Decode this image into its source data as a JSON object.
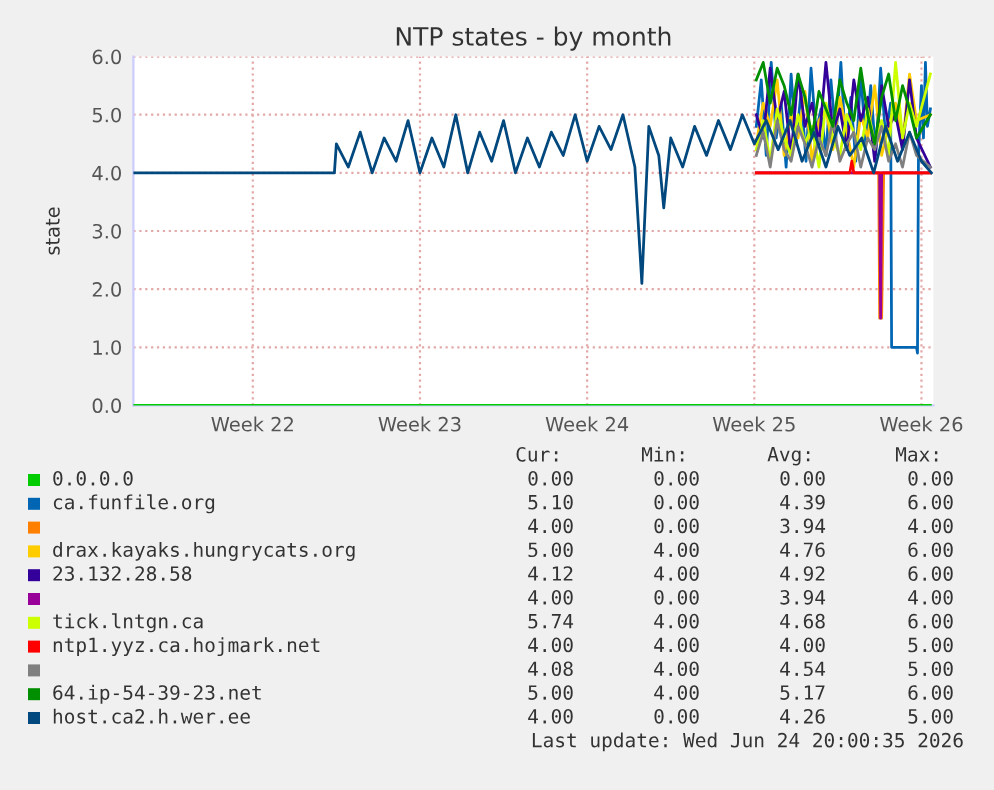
{
  "chart_data": {
    "type": "line",
    "title": "NTP states - by month",
    "ylabel": "state",
    "xlim": [
      "2026-05-20T00:00",
      "2026-06-22T12:00"
    ],
    "xticks": [
      {
        "value": "2026-05-25",
        "label": "Week 22"
      },
      {
        "value": "2026-06-01",
        "label": "Week 23"
      },
      {
        "value": "2026-06-08",
        "label": "Week 24"
      },
      {
        "value": "2026-06-15",
        "label": "Week 25"
      },
      {
        "value": "2026-06-22",
        "label": "Week 26"
      }
    ],
    "ylim": [
      0,
      6
    ],
    "yticks": [
      {
        "value": 0,
        "label": "0.0"
      },
      {
        "value": 1,
        "label": "1.0"
      },
      {
        "value": 2,
        "label": "2.0"
      },
      {
        "value": 3,
        "label": "3.0"
      },
      {
        "value": 4,
        "label": "4.0"
      },
      {
        "value": 5,
        "label": "5.0"
      },
      {
        "value": 6,
        "label": "6.0"
      }
    ],
    "grid": true,
    "legend": "bottom",
    "marker": "none",
    "line_style": "solid",
    "series": [
      {
        "name": "0.0.0.0",
        "color": "#00cc00",
        "x": [
          "2026-05-20T00:00",
          "2026-06-22T09:00"
        ],
        "values": [
          0,
          0
        ]
      },
      {
        "name": "ca.funfile.org",
        "color": "#0066b3",
        "x": [
          "2026-06-15T02:00",
          "2026-06-15T07:00",
          "2026-06-15T12:00",
          "2026-06-15T17:00",
          "2026-06-15T22:00",
          "2026-06-16T03:00",
          "2026-06-16T08:00",
          "2026-06-16T13:00",
          "2026-06-16T18:00",
          "2026-06-16T23:00",
          "2026-06-17T04:00",
          "2026-06-17T09:00",
          "2026-06-17T14:00",
          "2026-06-17T19:00",
          "2026-06-18T00:00",
          "2026-06-18T05:00",
          "2026-06-18T10:00",
          "2026-06-18T15:00",
          "2026-06-18T20:00",
          "2026-06-19T01:00",
          "2026-06-19T06:00",
          "2026-06-19T11:00",
          "2026-06-19T16:00",
          "2026-06-19T21:00",
          "2026-06-20T02:00",
          "2026-06-20T07:00",
          "2026-06-20T12:00",
          "2026-06-20T17:00",
          "2026-06-20T18:00",
          "2026-06-21T19:00",
          "2026-06-21T20:00",
          "2026-06-21T21:00",
          "2026-06-22T00:00",
          "2026-06-22T02:00",
          "2026-06-22T04:00",
          "2026-06-22T06:00",
          "2026-06-22T09:00"
        ],
        "values": [
          4.8,
          5.6,
          4.3,
          5.9,
          4.6,
          5.2,
          4.1,
          5.7,
          4.5,
          5.4,
          4.2,
          5.8,
          4.7,
          5.1,
          4.3,
          5.6,
          4.6,
          5.9,
          4.4,
          5.3,
          4.2,
          5.7,
          4.5,
          5.5,
          4.3,
          5.8,
          4.6,
          5.2,
          1.0,
          1.0,
          0.9,
          4.3,
          5.5,
          4.6,
          5.9,
          4.8,
          5.1
        ]
      },
      {
        "color": "#ff8000",
        "x": [
          "2026-06-15T02:00",
          "2026-06-20T05:00",
          "2026-06-20T06:00",
          "2026-06-20T08:00",
          "2026-06-20T10:00",
          "2026-06-22T09:00"
        ],
        "values": [
          4,
          4,
          1.5,
          1.5,
          4,
          4
        ]
      },
      {
        "name": "drax.kayaks.hungrycats.org",
        "color": "#ffcc00",
        "x": [
          "2026-06-15T02:00",
          "2026-06-15T09:00",
          "2026-06-15T16:00",
          "2026-06-15T23:00",
          "2026-06-16T06:00",
          "2026-06-16T13:00",
          "2026-06-16T20:00",
          "2026-06-17T03:00",
          "2026-06-17T10:00",
          "2026-06-17T17:00",
          "2026-06-18T00:00",
          "2026-06-18T07:00",
          "2026-06-18T14:00",
          "2026-06-18T21:00",
          "2026-06-19T04:00",
          "2026-06-19T11:00",
          "2026-06-19T18:00",
          "2026-06-20T01:00",
          "2026-06-20T08:00",
          "2026-06-20T15:00",
          "2026-06-20T22:00",
          "2026-06-21T05:00",
          "2026-06-21T12:00",
          "2026-06-21T19:00",
          "2026-06-22T09:00"
        ],
        "values": [
          4.5,
          5.2,
          4.8,
          5.6,
          4.3,
          5.0,
          4.6,
          5.4,
          4.2,
          4.9,
          5.1,
          4.4,
          5.3,
          4.7,
          4.1,
          5.0,
          4.6,
          5.5,
          4.3,
          4.8,
          5.2,
          4.5,
          5.7,
          4.9,
          5.0
        ]
      },
      {
        "name": "23.132.28.58",
        "color": "#330099",
        "x": [
          "2026-06-15T02:00",
          "2026-06-15T09:00",
          "2026-06-15T16:00",
          "2026-06-15T23:00",
          "2026-06-16T06:00",
          "2026-06-16T13:00",
          "2026-06-16T20:00",
          "2026-06-17T03:00",
          "2026-06-17T10:00",
          "2026-06-17T17:00",
          "2026-06-18T00:00",
          "2026-06-18T07:00",
          "2026-06-18T14:00",
          "2026-06-18T21:00",
          "2026-06-19T04:00",
          "2026-06-19T11:00",
          "2026-06-19T18:00",
          "2026-06-20T01:00",
          "2026-06-20T08:00",
          "2026-06-20T15:00",
          "2026-06-20T22:00",
          "2026-06-21T05:00",
          "2026-06-21T12:00",
          "2026-06-21T19:00",
          "2026-06-22T09:00"
        ],
        "values": [
          5.0,
          4.6,
          5.8,
          4.9,
          5.4,
          4.3,
          5.7,
          4.8,
          5.2,
          4.5,
          5.9,
          4.7,
          5.1,
          4.4,
          5.6,
          4.9,
          5.3,
          4.2,
          5.5,
          4.8,
          5.0,
          4.4,
          5.6,
          4.6,
          4.1
        ]
      },
      {
        "color": "#990099",
        "x": [
          "2026-06-15T02:00",
          "2026-06-20T06:00",
          "2026-06-20T07:00",
          "2026-06-20T08:00",
          "2026-06-22T09:00"
        ],
        "values": [
          4,
          4,
          1.5,
          4,
          4
        ]
      },
      {
        "name": "tick.lntgn.ca",
        "color": "#ccff00",
        "x": [
          "2026-06-15T02:00",
          "2026-06-15T09:00",
          "2026-06-15T16:00",
          "2026-06-15T23:00",
          "2026-06-16T06:00",
          "2026-06-16T13:00",
          "2026-06-16T20:00",
          "2026-06-17T03:00",
          "2026-06-17T10:00",
          "2026-06-17T17:00",
          "2026-06-18T00:00",
          "2026-06-18T07:00",
          "2026-06-18T14:00",
          "2026-06-18T21:00",
          "2026-06-19T04:00",
          "2026-06-19T11:00",
          "2026-06-19T18:00",
          "2026-06-20T01:00",
          "2026-06-20T08:00",
          "2026-06-20T15:00",
          "2026-06-20T22:00",
          "2026-06-21T05:00",
          "2026-06-21T12:00",
          "2026-06-21T19:00",
          "2026-06-22T09:00"
        ],
        "values": [
          4.4,
          4.9,
          4.2,
          5.1,
          4.6,
          4.3,
          5.0,
          4.5,
          4.8,
          4.1,
          5.2,
          4.6,
          4.3,
          5.0,
          4.7,
          4.4,
          5.1,
          4.5,
          4.9,
          4.3,
          5.9,
          4.6,
          5.2,
          4.8,
          5.7
        ]
      },
      {
        "name": "ntp1.yyz.ca.hojmark.net",
        "color": "#ff0000",
        "x": [
          "2026-06-15T02:00",
          "2026-06-19T00:00",
          "2026-06-19T02:00",
          "2026-06-19T04:00",
          "2026-06-22T09:00"
        ],
        "values": [
          4,
          4,
          4.2,
          4,
          4
        ]
      },
      {
        "color": "#808080",
        "x": [
          "2026-06-15T02:00",
          "2026-06-15T09:00",
          "2026-06-15T16:00",
          "2026-06-15T23:00",
          "2026-06-16T06:00",
          "2026-06-16T13:00",
          "2026-06-16T20:00",
          "2026-06-17T03:00",
          "2026-06-17T10:00",
          "2026-06-17T17:00",
          "2026-06-18T00:00",
          "2026-06-18T07:00",
          "2026-06-18T14:00",
          "2026-06-18T21:00",
          "2026-06-19T04:00",
          "2026-06-19T11:00",
          "2026-06-19T18:00",
          "2026-06-20T01:00",
          "2026-06-20T08:00",
          "2026-06-20T15:00",
          "2026-06-20T22:00",
          "2026-06-21T05:00",
          "2026-06-21T12:00",
          "2026-06-21T19:00",
          "2026-06-22T09:00"
        ],
        "values": [
          4.3,
          4.7,
          4.1,
          4.9,
          4.4,
          4.2,
          4.8,
          4.5,
          4.1,
          4.6,
          4.3,
          4.9,
          4.2,
          4.5,
          4.7,
          4.1,
          4.6,
          4.4,
          4.8,
          4.2,
          4.5,
          4.1,
          4.7,
          4.3,
          4.1
        ]
      },
      {
        "name": "64.ip-54-39-23.net",
        "color": "#008f00",
        "x": [
          "2026-06-15T02:00",
          "2026-06-15T09:00",
          "2026-06-15T16:00",
          "2026-06-15T23:00",
          "2026-06-16T06:00",
          "2026-06-16T13:00",
          "2026-06-16T20:00",
          "2026-06-17T03:00",
          "2026-06-17T10:00",
          "2026-06-17T17:00",
          "2026-06-18T00:00",
          "2026-06-18T07:00",
          "2026-06-18T14:00",
          "2026-06-18T21:00",
          "2026-06-19T04:00",
          "2026-06-19T11:00",
          "2026-06-19T18:00",
          "2026-06-20T01:00",
          "2026-06-20T08:00",
          "2026-06-20T15:00",
          "2026-06-20T22:00",
          "2026-06-21T05:00",
          "2026-06-21T12:00",
          "2026-06-21T19:00",
          "2026-06-22T09:00"
        ],
        "values": [
          5.6,
          5.9,
          5.2,
          5.8,
          5.5,
          5.0,
          5.7,
          5.3,
          4.6,
          5.4,
          5.1,
          4.8,
          5.6,
          5.2,
          4.9,
          5.8,
          5.0,
          4.5,
          5.3,
          5.7,
          4.9,
          5.5,
          5.1,
          4.6,
          5.0
        ]
      },
      {
        "name": "host.ca2.h.wer.ee",
        "color": "#00487d",
        "x": [
          "2026-05-20T00:00",
          "2026-05-28T10:00",
          "2026-05-28T12:00",
          "2026-05-29T00:00",
          "2026-05-29T12:00",
          "2026-05-30T00:00",
          "2026-05-30T12:00",
          "2026-05-31T00:00",
          "2026-05-31T12:00",
          "2026-06-01T00:00",
          "2026-06-01T12:00",
          "2026-06-02T00:00",
          "2026-06-02T12:00",
          "2026-06-03T00:00",
          "2026-06-03T12:00",
          "2026-06-04T00:00",
          "2026-06-04T12:00",
          "2026-06-05T00:00",
          "2026-06-05T12:00",
          "2026-06-06T00:00",
          "2026-06-06T12:00",
          "2026-06-07T00:00",
          "2026-06-07T12:00",
          "2026-06-08T00:00",
          "2026-06-08T12:00",
          "2026-06-09T00:00",
          "2026-06-09T12:00",
          "2026-06-10T00:00",
          "2026-06-10T07:00",
          "2026-06-10T14:00",
          "2026-06-11T00:00",
          "2026-06-11T05:00",
          "2026-06-11T12:00",
          "2026-06-12T00:00",
          "2026-06-12T12:00",
          "2026-06-13T00:00",
          "2026-06-13T12:00",
          "2026-06-14T00:00",
          "2026-06-14T12:00",
          "2026-06-15T00:00",
          "2026-06-15T12:00",
          "2026-06-16T00:00",
          "2026-06-16T12:00",
          "2026-06-17T00:00",
          "2026-06-17T12:00",
          "2026-06-18T00:00",
          "2026-06-18T12:00",
          "2026-06-19T00:00",
          "2026-06-19T12:00",
          "2026-06-20T00:00",
          "2026-06-20T12:00",
          "2026-06-21T00:00",
          "2026-06-21T12:00",
          "2026-06-22T00:00",
          "2026-06-22T10:00"
        ],
        "values": [
          4,
          4,
          4.5,
          4.1,
          4.7,
          4.0,
          4.6,
          4.2,
          4.9,
          4.0,
          4.6,
          4.1,
          5.0,
          4.0,
          4.7,
          4.2,
          4.9,
          4.0,
          4.6,
          4.1,
          4.7,
          4.3,
          5.0,
          4.2,
          4.8,
          4.4,
          5.0,
          4.1,
          2.1,
          4.8,
          4.3,
          3.4,
          4.6,
          4.1,
          4.8,
          4.3,
          4.9,
          4.4,
          5.0,
          4.5,
          4.9,
          4.4,
          4.9,
          4.2,
          4.7,
          4.1,
          4.8,
          4.3,
          4.6,
          4.0,
          4.8,
          4.2,
          4.7,
          4.2,
          4.0
        ]
      }
    ],
    "annotations": [
      "Cur:",
      "Min:",
      "Avg:",
      "Max:",
      "0.00",
      "0.00",
      "0.00",
      "0.00",
      "5.10",
      "0.00",
      "4.39",
      "6.00",
      "4.00",
      "0.00",
      "3.94",
      "4.00",
      "5.00",
      "4.00",
      "4.76",
      "6.00",
      "4.12",
      "4.00",
      "4.92",
      "6.00",
      "4.00",
      "0.00",
      "3.94",
      "4.00",
      "5.74",
      "4.00",
      "4.68",
      "6.00",
      "4.00",
      "4.00",
      "4.00",
      "5.00",
      "4.08",
      "4.00",
      "4.54",
      "5.00",
      "5.00",
      "4.00",
      "5.17",
      "6.00",
      "4.00",
      "0.00",
      "4.26",
      "5.00",
      "Last update: Wed Jun 24 20:00:35 2026"
    ]
  }
}
